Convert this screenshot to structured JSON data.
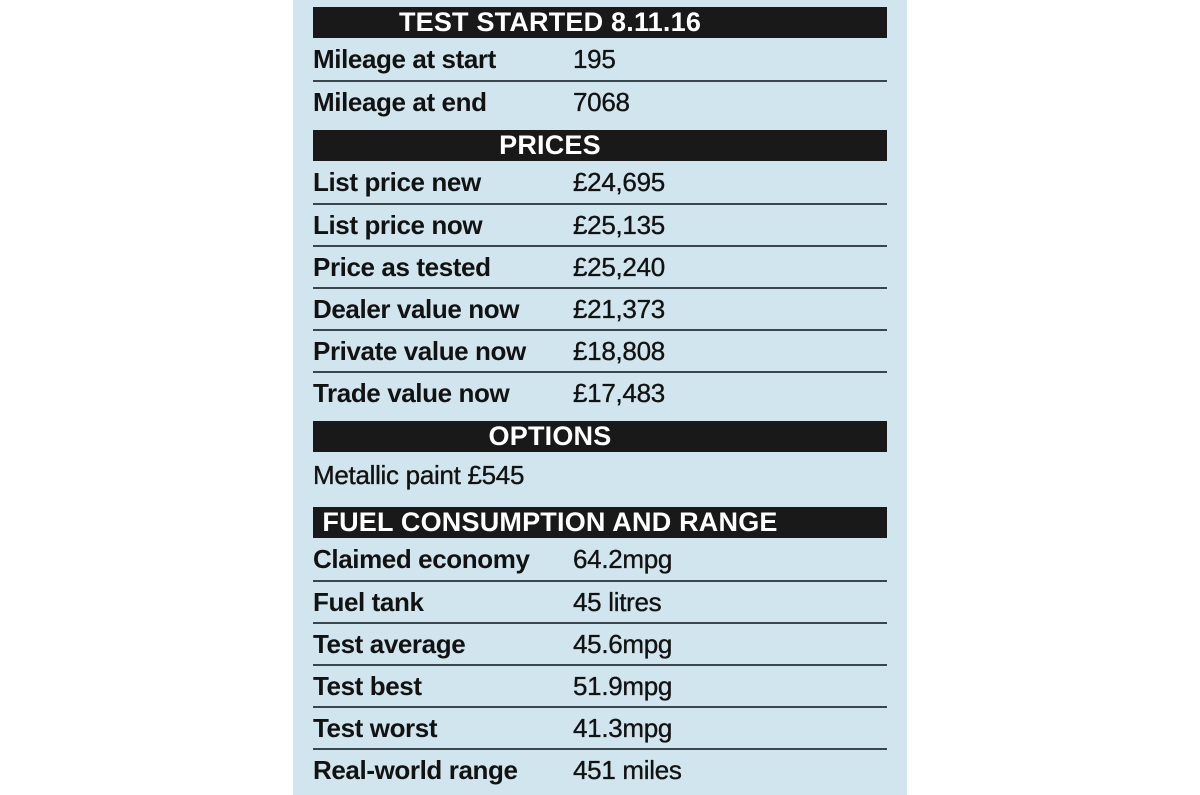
{
  "panel": {
    "colors": {
      "page_background": "#ffffff",
      "panel_background": "#d0e5ed",
      "header_bar": "#191919",
      "header_text": "#ffffff",
      "row_text": "#121212",
      "divider": "#3a464e"
    },
    "sections": [
      {
        "header": "TEST STARTED 8.11.16",
        "rows": [
          {
            "label": "Mileage at start",
            "value": "195"
          },
          {
            "label": "Mileage at end",
            "value": "7068"
          }
        ]
      },
      {
        "header": "PRICES",
        "rows": [
          {
            "label": "List price new",
            "value": "£24,695"
          },
          {
            "label": "List price now",
            "value": "£25,135"
          },
          {
            "label": "Price as tested",
            "value": "£25,240"
          },
          {
            "label": "Dealer value now",
            "value": "£21,373"
          },
          {
            "label": "Private value now",
            "value": "£18,808"
          },
          {
            "label": "Trade value now",
            "value": "£17,483"
          }
        ]
      },
      {
        "header": "OPTIONS",
        "note": "Metallic paint £545",
        "rows": []
      },
      {
        "header": "FUEL CONSUMPTION AND RANGE",
        "rows": [
          {
            "label": "Claimed economy",
            "value": "64.2mpg"
          },
          {
            "label": "Fuel tank",
            "value": "45 litres"
          },
          {
            "label": "Test average",
            "value": "45.6mpg"
          },
          {
            "label": "Test best",
            "value": "51.9mpg"
          },
          {
            "label": "Test worst",
            "value": "41.3mpg"
          },
          {
            "label": "Real-world range",
            "value": "451 miles"
          }
        ]
      }
    ]
  }
}
